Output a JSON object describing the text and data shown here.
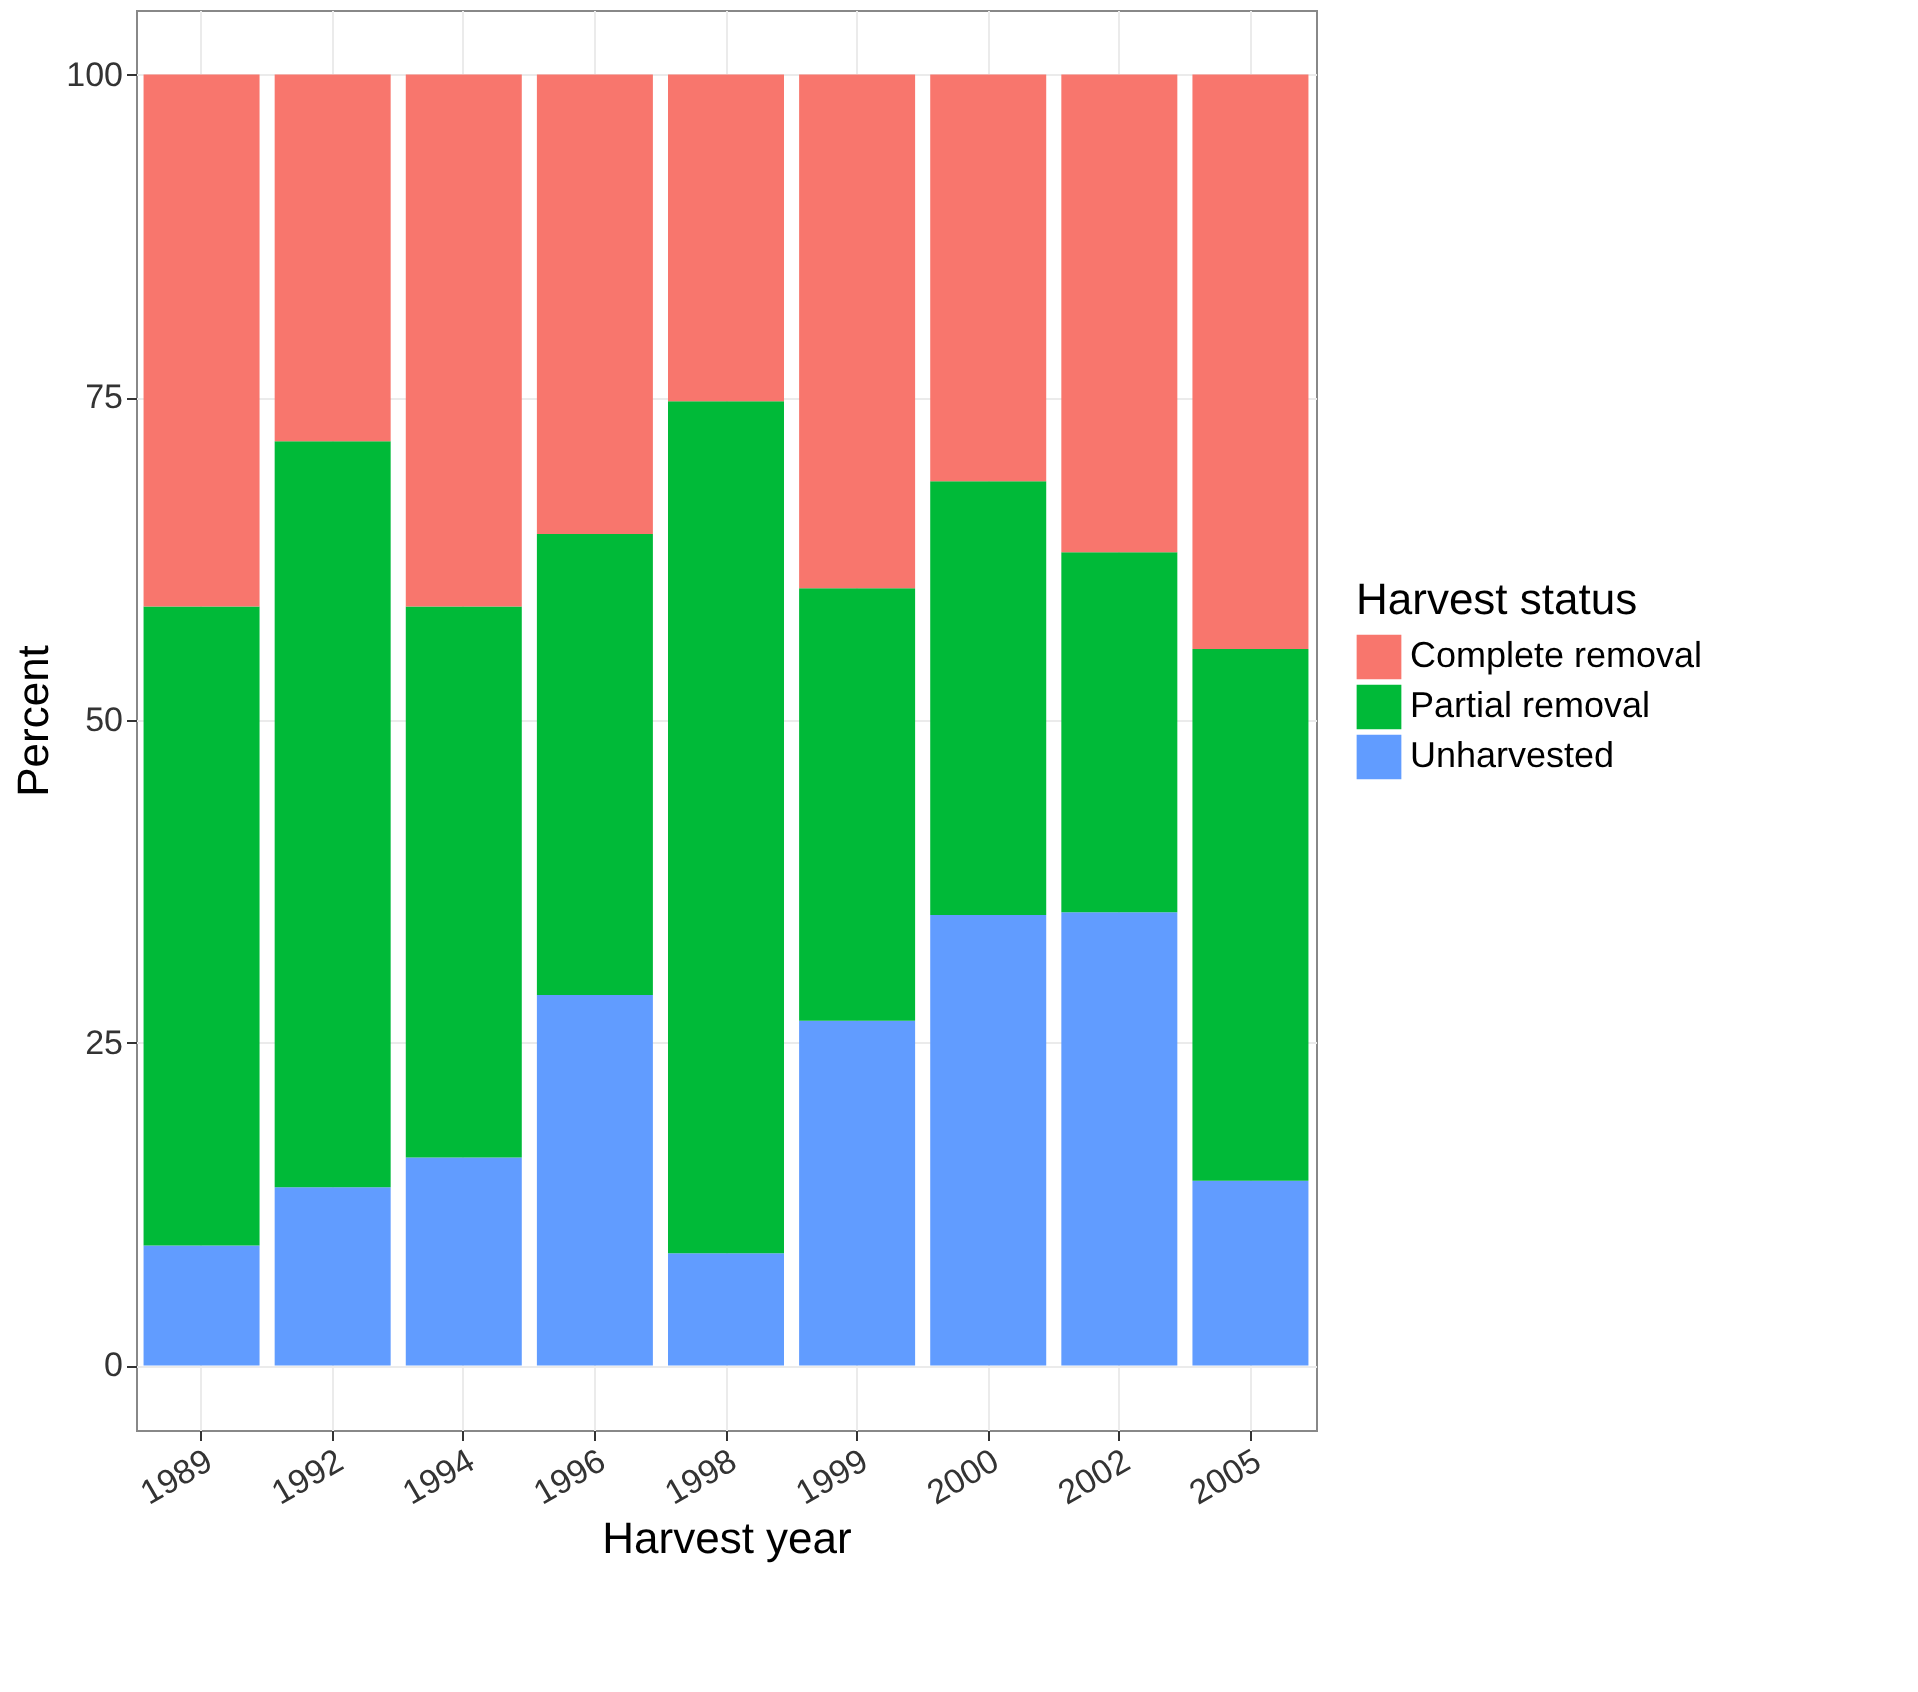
{
  "chart_data": {
    "type": "bar",
    "stacked": true,
    "xlabel": "Harvest year",
    "ylabel": "Percent",
    "legend_title": "Harvest status",
    "legend": "right",
    "categories": [
      "1989",
      "1992",
      "1994",
      "1996",
      "1998",
      "1999",
      "2000",
      "2002",
      "2005"
    ],
    "series": [
      {
        "name": "Unharvested",
        "color": "#619cff",
        "values": [
          9.3,
          13.8,
          16.1,
          28.7,
          8.7,
          26.7,
          34.9,
          35.1,
          14.3
        ]
      },
      {
        "name": "Partial removal",
        "color": "#00ba38",
        "values": [
          49.5,
          57.8,
          42.7,
          35.7,
          66.0,
          33.5,
          33.6,
          27.9,
          41.2
        ]
      },
      {
        "name": "Complete removal",
        "color": "#f8766d",
        "values": [
          41.2,
          28.4,
          41.2,
          35.6,
          25.3,
          39.8,
          31.5,
          37.0,
          44.5
        ]
      }
    ],
    "ylim": [
      -5,
      105
    ],
    "yticks": [
      0,
      25,
      50,
      75,
      100
    ],
    "grid": true
  }
}
